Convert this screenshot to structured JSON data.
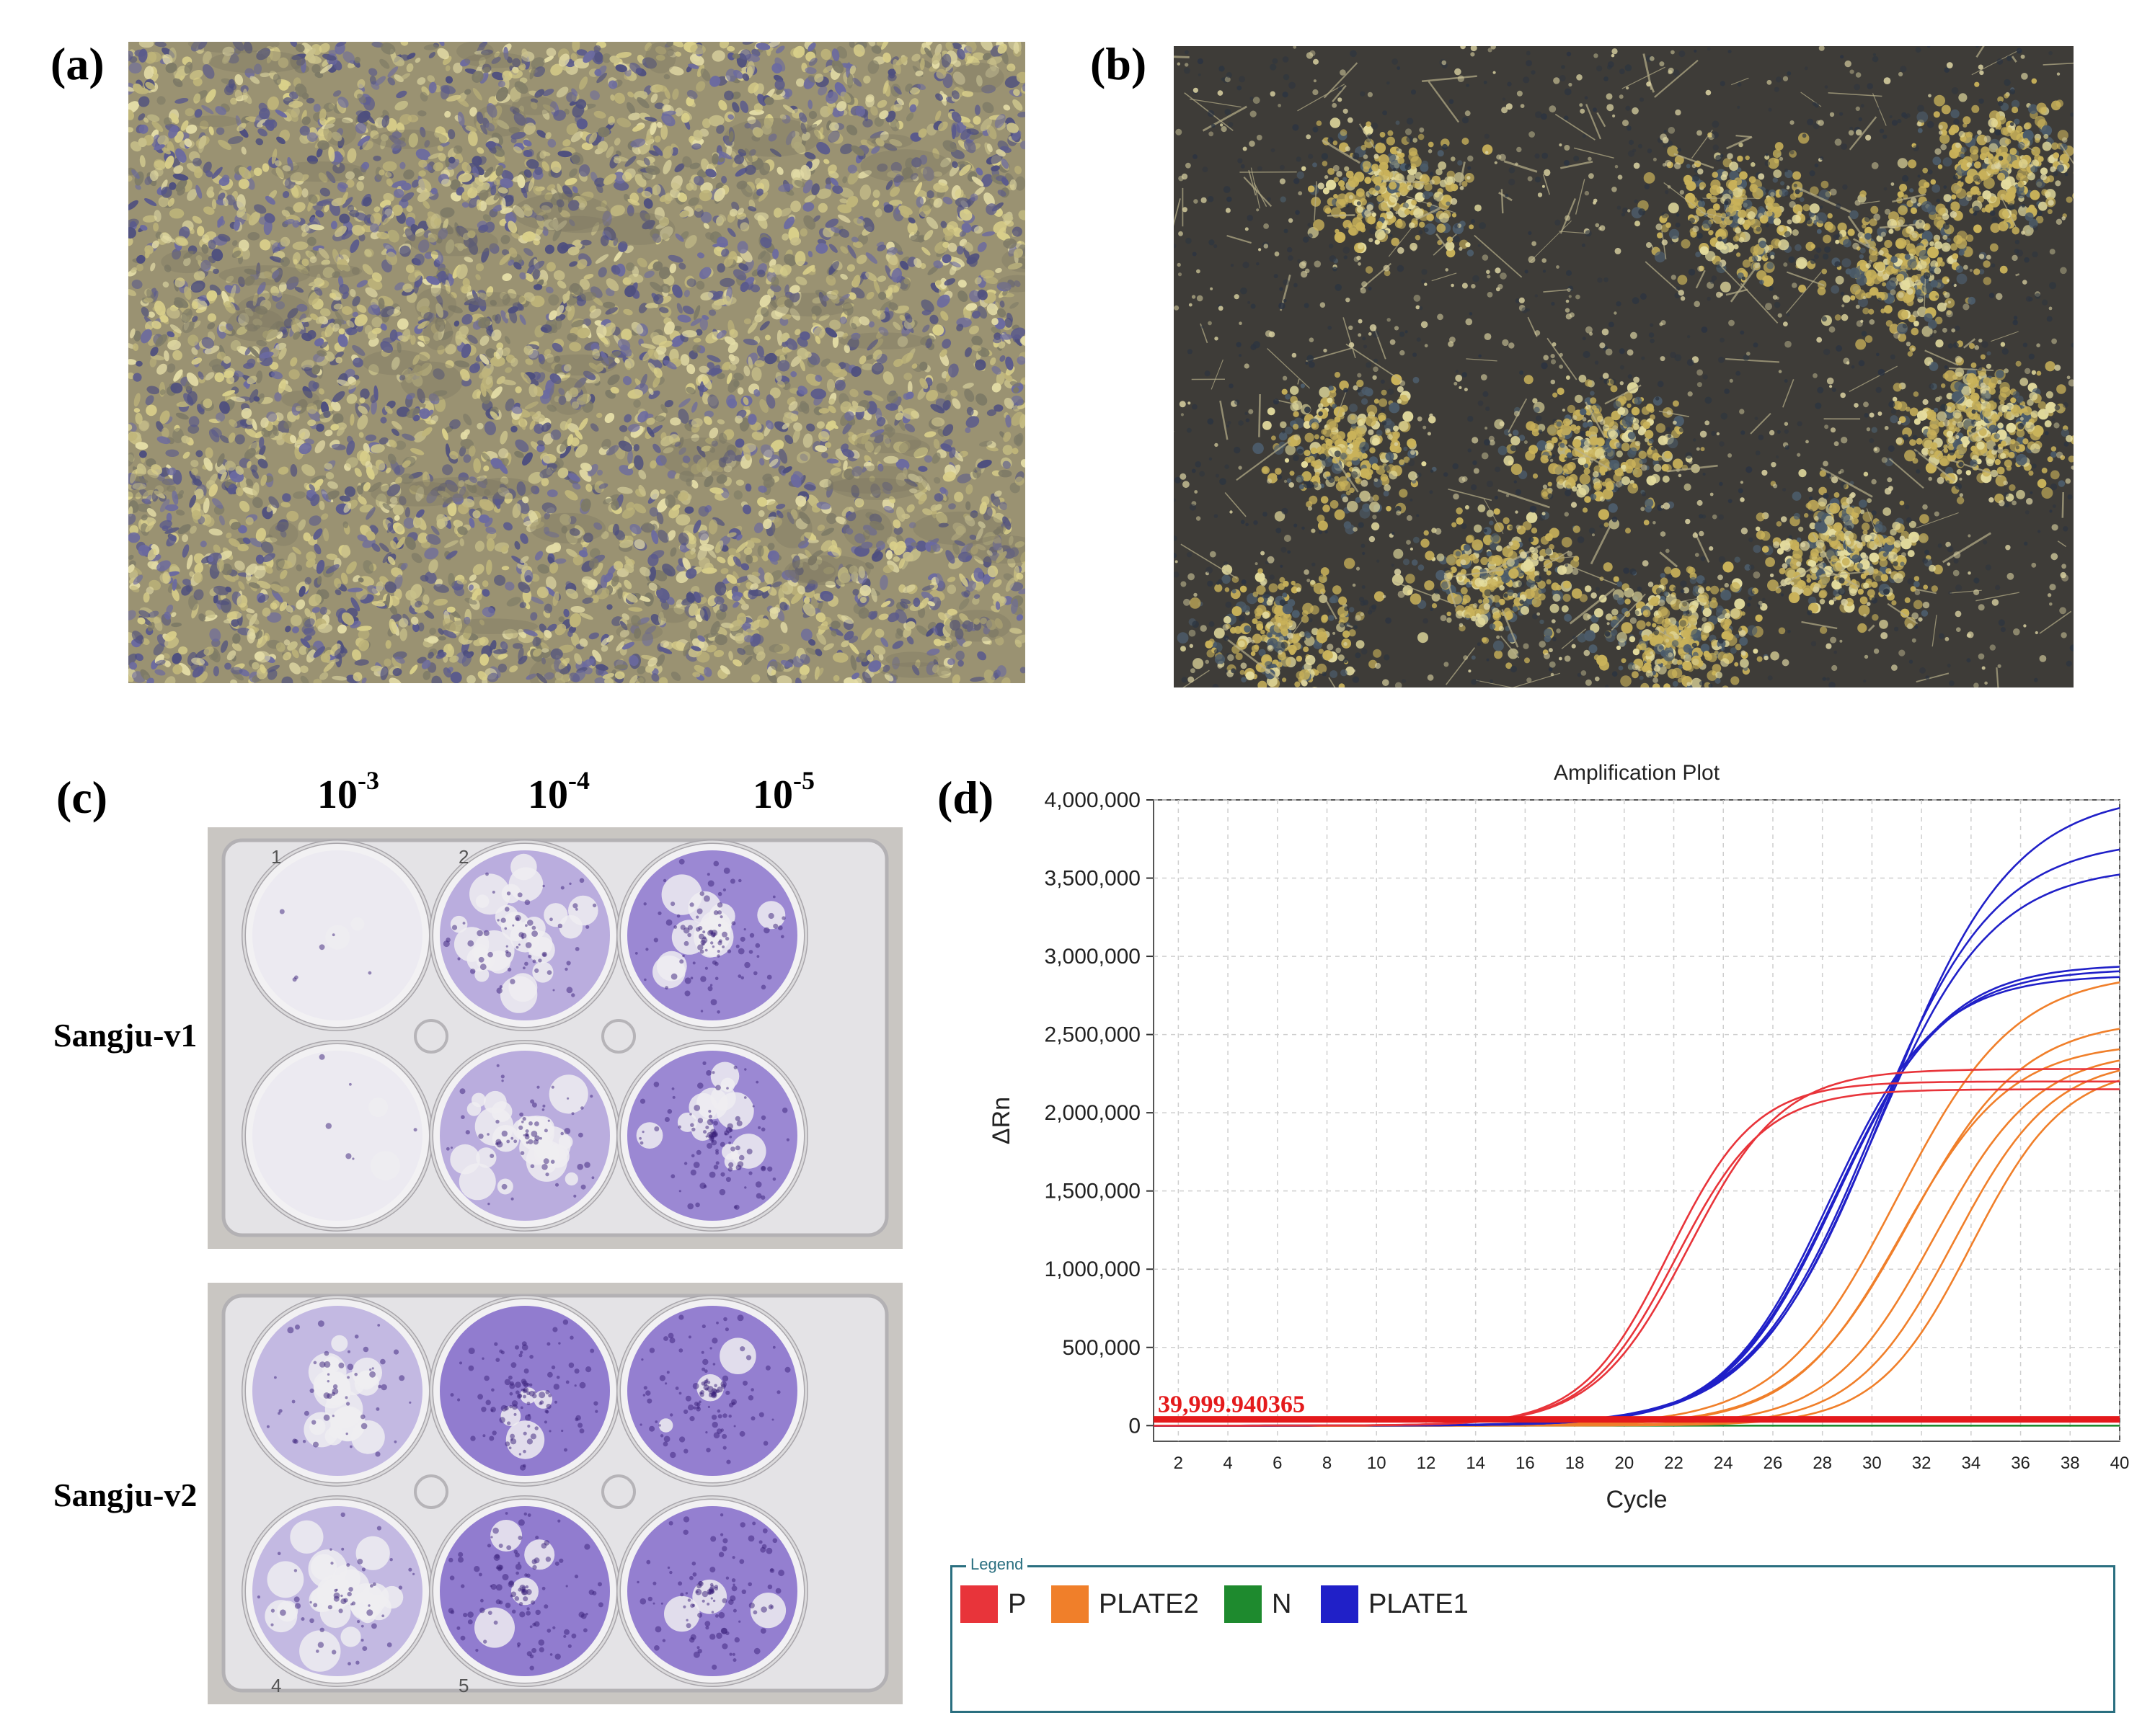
{
  "panels": {
    "a": {
      "label": "(a)"
    },
    "b": {
      "label": "(b)"
    },
    "c": {
      "label": "(c)",
      "dilutions": [
        {
          "base": "10",
          "exp": "-3"
        },
        {
          "base": "10",
          "exp": "-4"
        },
        {
          "base": "10",
          "exp": "-5"
        }
      ],
      "rows": [
        "Sangju-v1",
        "Sangju-v2"
      ],
      "well_numbers_top": [
        "1",
        "2"
      ],
      "well_numbers_bottom": [
        "4",
        "5"
      ]
    },
    "d": {
      "label": "(d)"
    }
  },
  "colors": {
    "P": "#e8343a",
    "PLATE2": "#f07f2a",
    "N": "#1e8a2e",
    "PLATE1": "#2020c8",
    "threshold": "#e41a1c",
    "stain": "#6a4cc0"
  },
  "chart_data": {
    "type": "line",
    "title": "Amplification Plot",
    "xlabel": "Cycle",
    "ylabel": "ΔRn",
    "xlim": [
      1,
      40
    ],
    "ylim": [
      -100000,
      4000000
    ],
    "x_ticks": [
      2,
      4,
      6,
      8,
      10,
      12,
      14,
      16,
      18,
      20,
      22,
      24,
      26,
      28,
      30,
      32,
      34,
      36,
      38,
      40
    ],
    "y_ticks": [
      0,
      500000,
      1000000,
      1500000,
      2000000,
      2500000,
      3000000,
      3500000,
      4000000
    ],
    "y_tick_labels": [
      "0",
      "500,000",
      "1,000,000",
      "1,500,000",
      "2,000,000",
      "2,500,000",
      "3,000,000",
      "3,500,000",
      "4,000,000"
    ],
    "threshold": {
      "value": 39999.940365,
      "label": "39,999.940365"
    },
    "grid": true,
    "series": [
      {
        "name": "P",
        "group": "P",
        "max": 2200000,
        "mid": 21.8,
        "slope": 1.75
      },
      {
        "name": "P",
        "group": "P",
        "max": 2150000,
        "mid": 22.1,
        "slope": 1.8
      },
      {
        "name": "P",
        "group": "P",
        "max": 2280000,
        "mid": 22.6,
        "slope": 1.9
      },
      {
        "name": "PLATE1",
        "group": "PLATE1",
        "max": 4050000,
        "mid": 30.5,
        "slope": 2.6
      },
      {
        "name": "PLATE1",
        "group": "PLATE1",
        "max": 3750000,
        "mid": 30.0,
        "slope": 2.5
      },
      {
        "name": "PLATE1",
        "group": "PLATE1",
        "max": 3580000,
        "mid": 29.9,
        "slope": 2.45
      },
      {
        "name": "PLATE1",
        "group": "PLATE1",
        "max": 2950000,
        "mid": 28.6,
        "slope": 2.2
      },
      {
        "name": "PLATE1",
        "group": "PLATE1",
        "max": 2920000,
        "mid": 28.5,
        "slope": 2.2
      },
      {
        "name": "PLATE1",
        "group": "PLATE1",
        "max": 2880000,
        "mid": 28.3,
        "slope": 2.15
      },
      {
        "name": "PLATE2",
        "group": "PLATE2",
        "max": 2900000,
        "mid": 31.0,
        "slope": 2.4
      },
      {
        "name": "PLATE2",
        "group": "PLATE2",
        "max": 2600000,
        "mid": 31.5,
        "slope": 2.3
      },
      {
        "name": "PLATE2",
        "group": "PLATE2",
        "max": 2450000,
        "mid": 31.2,
        "slope": 2.2
      },
      {
        "name": "PLATE2",
        "group": "PLATE2",
        "max": 2400000,
        "mid": 32.5,
        "slope": 2.1
      },
      {
        "name": "PLATE2",
        "group": "PLATE2",
        "max": 2350000,
        "mid": 33.3,
        "slope": 2.0
      },
      {
        "name": "PLATE2",
        "group": "PLATE2",
        "max": 2300000,
        "mid": 34.0,
        "slope": 1.9
      },
      {
        "name": "N",
        "group": "N",
        "max": 0,
        "mid": 50,
        "slope": 2
      }
    ],
    "legend": [
      {
        "name": "P",
        "label": "P"
      },
      {
        "name": "PLATE2",
        "label": "PLATE2"
      },
      {
        "name": "N",
        "label": "N"
      },
      {
        "name": "PLATE1",
        "label": "PLATE1"
      }
    ],
    "legend_title": "Legend"
  }
}
